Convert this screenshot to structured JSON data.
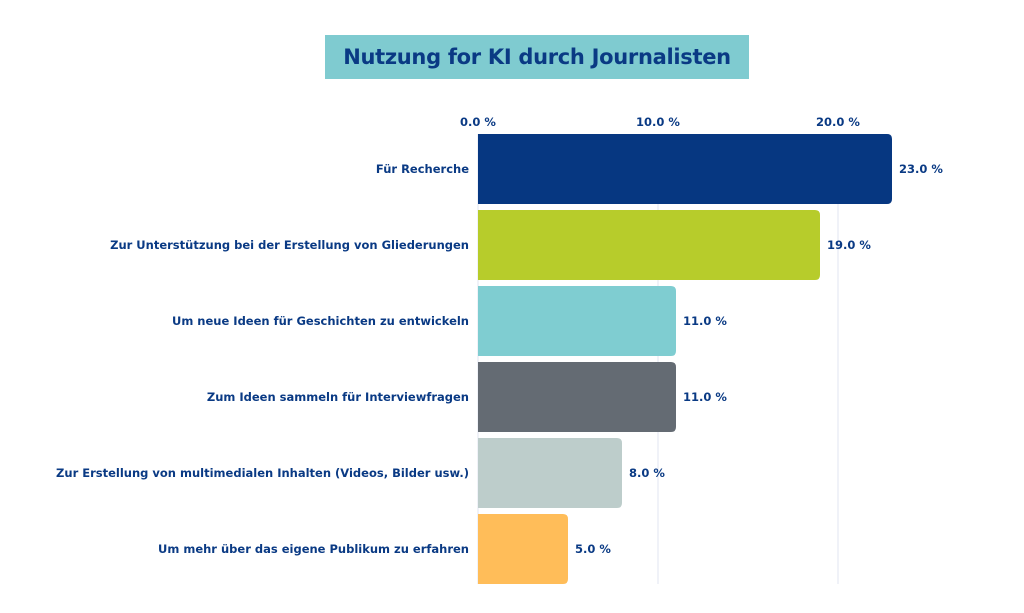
{
  "chart_data": {
    "type": "bar",
    "orientation": "horizontal",
    "title": "Nutzung for KI durch Journalisten",
    "xlabel": "",
    "ylabel": "",
    "xlim": [
      0,
      23
    ],
    "x_ticks": [
      0,
      10,
      20
    ],
    "x_tick_labels": [
      "0.0 %",
      "10.0 %",
      "20.0 %"
    ],
    "x_axis_position": "top",
    "grid": true,
    "legend": "none",
    "categories": [
      "Für Recherche",
      "Zur Unterstützung bei der Erstellung von Gliederungen",
      "Um neue Ideen für Geschichten zu entwickeln",
      "Zum Ideen sammeln für Interviewfragen",
      "Zur Erstellung von multimedialen Inhalten (Videos, Bilder usw.)",
      "Um mehr über das eigene Publikum zu erfahren"
    ],
    "values": [
      23.0,
      19.0,
      11.0,
      11.0,
      8.0,
      5.0
    ],
    "value_labels": [
      "23.0 %",
      "19.0 %",
      "11.0 %",
      "11.0 %",
      "8.0 %",
      "5.0 %"
    ],
    "colors": [
      "#063781",
      "#b7cc2b",
      "#7fcdd1",
      "#646b73",
      "#bdcdcb",
      "#ffbd59"
    ],
    "unit": "%"
  },
  "colors": {
    "title_background": "#7fcbd0",
    "text": "#0a3a84",
    "gridline": "#e2e4f0"
  }
}
